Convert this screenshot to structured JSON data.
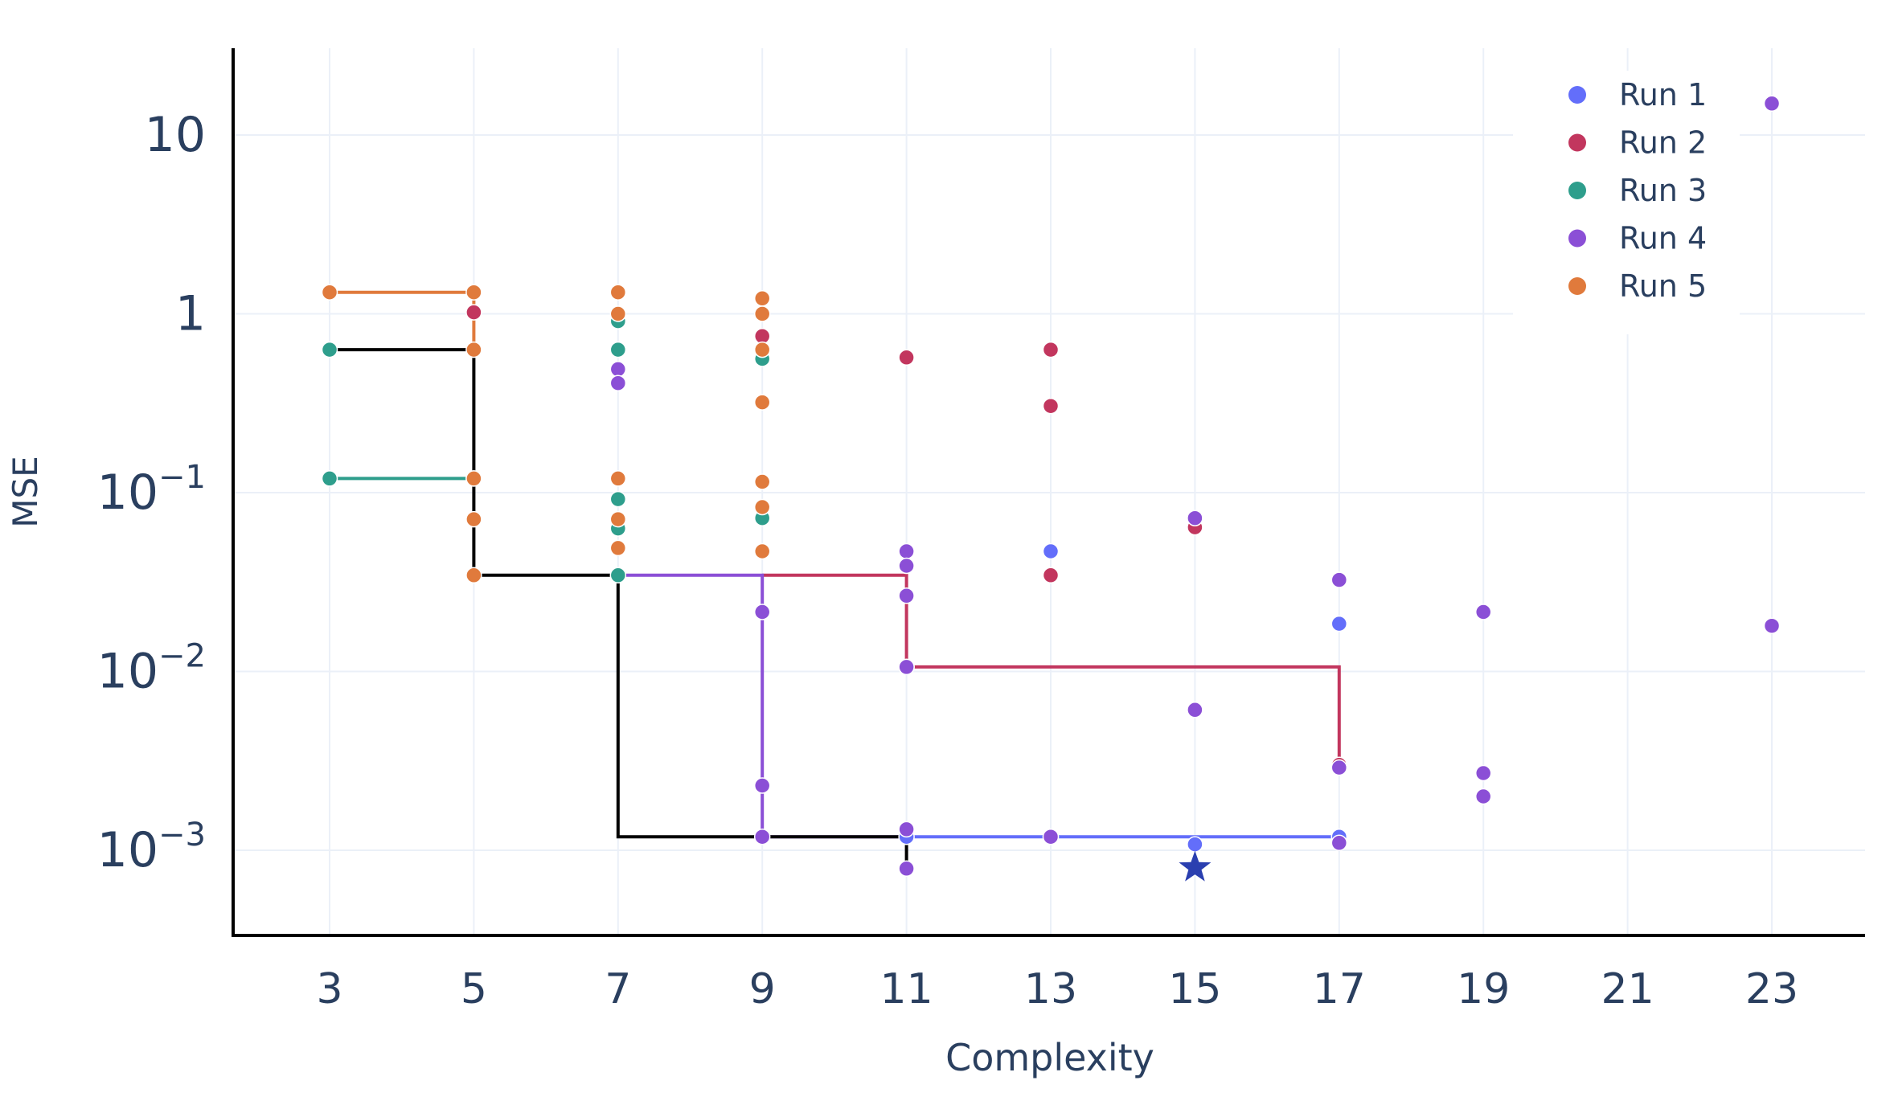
{
  "chart_data": {
    "type": "scatter",
    "title": "",
    "xlabel": "Complexity",
    "ylabel": "MSE",
    "x_scale": "linear",
    "y_scale": "log",
    "xlim": [
      1.65,
      24.3
    ],
    "ylim": [
      0.00034,
      30
    ],
    "x_ticks": [
      3,
      5,
      7,
      9,
      11,
      13,
      15,
      17,
      19,
      21,
      23
    ],
    "x_tick_labels": [
      "3",
      "5",
      "7",
      "9",
      "11",
      "13",
      "15",
      "17",
      "19",
      "21",
      "23"
    ],
    "y_ticks": [
      {
        "value": 0.001,
        "base": "10",
        "exp": "−3"
      },
      {
        "value": 0.01,
        "base": "10",
        "exp": "−2"
      },
      {
        "value": 0.1,
        "base": "10",
        "exp": "−1"
      },
      {
        "value": 1,
        "base": "1",
        "exp": ""
      },
      {
        "value": 10,
        "base": "10",
        "exp": ""
      }
    ],
    "grid": true,
    "legend_position": "top-right",
    "series": [
      {
        "name": "Run 1",
        "color": "#636efa",
        "points": [
          [
            11,
            0.00119
          ],
          [
            13,
            0.047
          ],
          [
            13,
            0.00119
          ],
          [
            15,
            0.00108
          ],
          [
            17,
            0.00119
          ],
          [
            17,
            0.0185
          ]
        ],
        "front": [
          [
            11,
            0.00119
          ],
          [
            17,
            0.00119
          ]
        ]
      },
      {
        "name": "Run 2",
        "color": "#c2365e",
        "points": [
          [
            5,
            1.02
          ],
          [
            9,
            0.75
          ],
          [
            11,
            0.57
          ],
          [
            11,
            0.0106
          ],
          [
            13,
            0.63
          ],
          [
            13,
            0.305
          ],
          [
            13,
            0.0345
          ],
          [
            15,
            0.064
          ],
          [
            17,
            0.003
          ]
        ],
        "front": [
          [
            9,
            0.0345
          ],
          [
            11,
            0.0345
          ],
          [
            11,
            0.0106
          ],
          [
            17,
            0.0106
          ],
          [
            17,
            0.003
          ]
        ]
      },
      {
        "name": "Run 3",
        "color": "#2e9e8c",
        "points": [
          [
            3,
            0.63
          ],
          [
            3,
            0.12
          ],
          [
            5,
            0.12
          ],
          [
            7,
            0.91
          ],
          [
            7,
            0.63
          ],
          [
            7,
            0.092
          ],
          [
            7,
            0.063
          ],
          [
            7,
            0.0345
          ],
          [
            9,
            0.56
          ],
          [
            9,
            0.072
          ]
        ],
        "front": [
          [
            3,
            0.12
          ],
          [
            5,
            0.12
          ]
        ]
      },
      {
        "name": "Run 4",
        "color": "#8b4fd6",
        "points": [
          [
            7,
            0.49
          ],
          [
            7,
            0.41
          ],
          [
            9,
            0.0215
          ],
          [
            9,
            0.0023
          ],
          [
            9,
            0.00119
          ],
          [
            11,
            0.047
          ],
          [
            11,
            0.039
          ],
          [
            11,
            0.0265
          ],
          [
            11,
            0.0106
          ],
          [
            11,
            0.00131
          ],
          [
            11,
            0.00079
          ],
          [
            13,
            0.00119
          ],
          [
            15,
            0.072
          ],
          [
            15,
            0.0061
          ],
          [
            17,
            0.0325
          ],
          [
            17,
            0.0029
          ],
          [
            17,
            0.0011
          ],
          [
            19,
            0.0215
          ],
          [
            19,
            0.0027
          ],
          [
            19,
            0.002
          ],
          [
            23,
            15
          ],
          [
            23,
            0.018
          ]
        ],
        "front": [
          [
            7,
            0.0345
          ],
          [
            9,
            0.0345
          ],
          [
            9,
            0.00119
          ],
          [
            11,
            0.00119
          ]
        ]
      },
      {
        "name": "Run 5",
        "color": "#e07a3c",
        "points": [
          [
            3,
            1.32
          ],
          [
            5,
            1.32
          ],
          [
            5,
            0.63
          ],
          [
            5,
            0.12
          ],
          [
            5,
            0.071
          ],
          [
            5,
            0.0345
          ],
          [
            7,
            1.32
          ],
          [
            7,
            1.0
          ],
          [
            7,
            0.12
          ],
          [
            7,
            0.071
          ],
          [
            7,
            0.049
          ],
          [
            9,
            1.22
          ],
          [
            9,
            1.0
          ],
          [
            9,
            0.63
          ],
          [
            9,
            0.32
          ],
          [
            9,
            0.115
          ],
          [
            9,
            0.083
          ],
          [
            9,
            0.047
          ]
        ],
        "front": [
          [
            3,
            1.32
          ],
          [
            5,
            1.32
          ],
          [
            5,
            0.63
          ]
        ]
      }
    ],
    "overall_front": {
      "color": "#000000",
      "points": [
        [
          3,
          0.63
        ],
        [
          5,
          0.63
        ],
        [
          5,
          0.0345
        ],
        [
          7,
          0.0345
        ],
        [
          7,
          0.00119
        ],
        [
          11,
          0.00119
        ],
        [
          11,
          0.00079
        ]
      ]
    },
    "best_marker": {
      "x": 15,
      "y": 0.0008,
      "color": "#2a3fb0",
      "symbol": "star"
    }
  }
}
